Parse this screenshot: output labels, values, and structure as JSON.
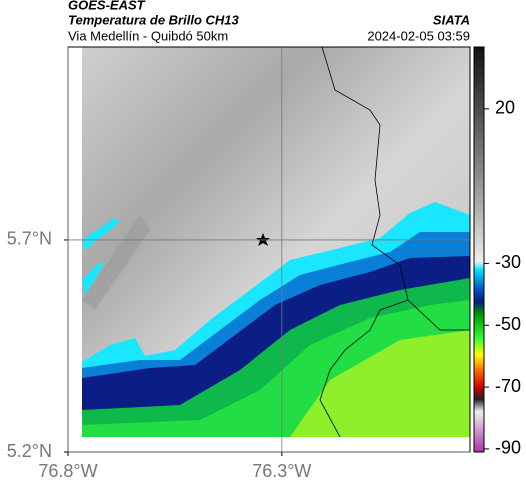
{
  "header": {
    "source": "GOES-EAST",
    "product": "Temperatura de Brillo CH13",
    "region": "Via Medellín - Quibdó 50km",
    "agency": "SIATA",
    "datetime": "2024-02-05 03:59"
  },
  "map": {
    "latlim": [
      5.2,
      6.155
    ],
    "lonlim": [
      -76.8,
      -75.86
    ],
    "latticks": [
      {
        "value": 5.7,
        "label": "5.7°N"
      },
      {
        "value": 5.2,
        "label": "5.2°N"
      }
    ],
    "lonticks": [
      {
        "value": -76.8,
        "label": "76.8°W"
      },
      {
        "value": -76.3,
        "label": "76.3°W"
      }
    ],
    "grid": true
  },
  "colorbar": {
    "lim": [
      -91,
      40
    ],
    "ticks": [
      20,
      -30,
      -50,
      -70,
      -90
    ]
  }
}
